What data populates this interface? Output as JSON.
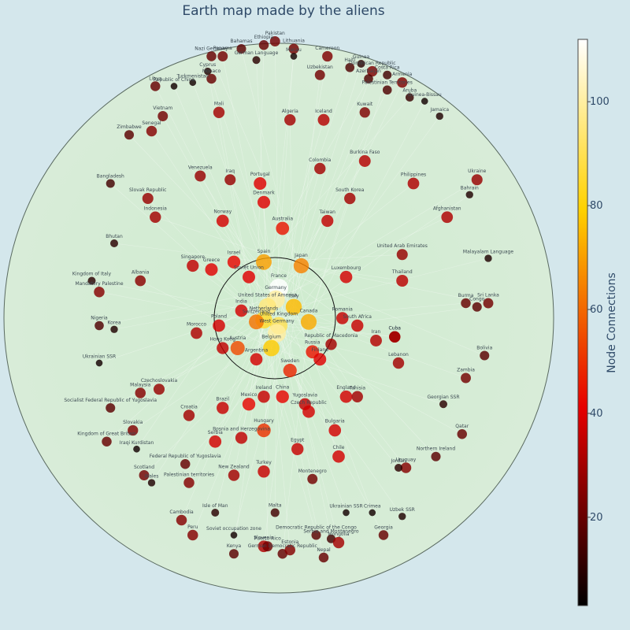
{
  "title": "Earth map made by the aliens",
  "chart_data": {
    "type": "scatter",
    "title": "Earth map made by the aliens",
    "colorbar": {
      "title": "Node Connections",
      "range": [
        3,
        112
      ],
      "ticks": [
        20,
        40,
        60,
        80,
        100
      ],
      "colorscale": [
        "#000000",
        "#e60000",
        "#ffd200",
        "#ffffff"
      ]
    },
    "points": [
      {
        "label": "France",
        "x": 0,
        "y": 8,
        "value": 112
      },
      {
        "label": "Germany",
        "x": -0.8,
        "y": 5,
        "value": 100
      },
      {
        "label": "United States of America",
        "x": -3,
        "y": 3,
        "value": 95
      },
      {
        "label": "United Kingdom",
        "x": 0,
        "y": -2,
        "value": 90
      },
      {
        "label": "Italy",
        "x": 4,
        "y": 3,
        "value": 75
      },
      {
        "label": "Netherlands",
        "x": -4,
        "y": -0.5,
        "value": 85
      },
      {
        "label": "West Germany",
        "x": -0.5,
        "y": -4,
        "value": 100
      },
      {
        "label": "Japan",
        "x": 6,
        "y": 14,
        "value": 65
      },
      {
        "label": "Spain",
        "x": -4,
        "y": 15,
        "value": 70
      },
      {
        "label": "Canada",
        "x": 8,
        "y": -1,
        "value": 72
      },
      {
        "label": "Belgium",
        "x": -2,
        "y": -8,
        "value": 78
      },
      {
        "label": "Switzerland",
        "x": -6,
        "y": -1,
        "value": 62
      },
      {
        "label": "Poland",
        "x": -16,
        "y": -2,
        "value": 38
      },
      {
        "label": "Soviet Union",
        "x": -8,
        "y": 11,
        "value": 40
      },
      {
        "label": "India",
        "x": -10,
        "y": 2,
        "value": 38
      },
      {
        "label": "Austria",
        "x": -11,
        "y": -8,
        "value": 55
      },
      {
        "label": "Russia",
        "x": 9,
        "y": -9,
        "value": 45
      },
      {
        "label": "Argentina",
        "x": -6,
        "y": -11,
        "value": 38
      },
      {
        "label": "Sweden",
        "x": 3,
        "y": -14,
        "value": 48
      },
      {
        "label": "Australia",
        "x": 1,
        "y": 24,
        "value": 45
      },
      {
        "label": "Finland",
        "x": 11,
        "y": -11,
        "value": 40
      },
      {
        "label": "Republic of Macedonia",
        "x": 14,
        "y": -7,
        "value": 30
      },
      {
        "label": "Israel",
        "x": -12,
        "y": 15,
        "value": 42
      },
      {
        "label": "Greece",
        "x": -18,
        "y": 13,
        "value": 40
      },
      {
        "label": "Hong Kong",
        "x": -15,
        "y": -8,
        "value": 35
      },
      {
        "label": "Morocco",
        "x": -22,
        "y": -4,
        "value": 32
      },
      {
        "label": "Denmark",
        "x": -4,
        "y": 31,
        "value": 40
      },
      {
        "label": "Portugal",
        "x": -5,
        "y": 36,
        "value": 40
      },
      {
        "label": "Norway",
        "x": -15,
        "y": 26,
        "value": 38
      },
      {
        "label": "Singapore",
        "x": -23,
        "y": 14,
        "value": 35
      },
      {
        "label": "Taiwan",
        "x": 13,
        "y": 26,
        "value": 35
      },
      {
        "label": "Luxembourg",
        "x": 18,
        "y": 11,
        "value": 38
      },
      {
        "label": "Romania",
        "x": 17,
        "y": 0,
        "value": 36
      },
      {
        "label": "South Africa",
        "x": 21,
        "y": -2,
        "value": 36
      },
      {
        "label": "Ireland",
        "x": -4,
        "y": -21,
        "value": 36
      },
      {
        "label": "China",
        "x": 1,
        "y": -21,
        "value": 42
      },
      {
        "label": "Mexico",
        "x": -8,
        "y": -23,
        "value": 42
      },
      {
        "label": "Yugoslavia",
        "x": 7,
        "y": -23,
        "value": 35
      },
      {
        "label": "Czech Republic",
        "x": 8,
        "y": -25,
        "value": 38
      },
      {
        "label": "Hungary",
        "x": -4,
        "y": -30,
        "value": 50
      },
      {
        "label": "Brazil",
        "x": -15,
        "y": -24,
        "value": 36
      },
      {
        "label": "Bosnia and Herzegovina",
        "x": -10,
        "y": -32,
        "value": 35
      },
      {
        "label": "Serbia",
        "x": -17,
        "y": -33,
        "value": 38
      },
      {
        "label": "Croatia",
        "x": -24,
        "y": -26,
        "value": 30
      },
      {
        "label": "England",
        "x": 18,
        "y": -21,
        "value": 38
      },
      {
        "label": "Tunisia",
        "x": 21,
        "y": -21,
        "value": 30
      },
      {
        "label": "Bulgaria",
        "x": 15,
        "y": -30,
        "value": 38
      },
      {
        "label": "Egypt",
        "x": 5,
        "y": -35,
        "value": 36
      },
      {
        "label": "Chile",
        "x": 16,
        "y": -37,
        "value": 38
      },
      {
        "label": "Turkey",
        "x": -4,
        "y": -41,
        "value": 36
      },
      {
        "label": "New Zealand",
        "x": -12,
        "y": -42,
        "value": 30
      },
      {
        "label": "Montenegro",
        "x": 9,
        "y": -43,
        "value": 22
      },
      {
        "label": "Iran",
        "x": 26,
        "y": -6,
        "value": 33
      },
      {
        "label": "Cuba",
        "x": 31,
        "y": -5,
        "value": 30
      },
      {
        "label": "Lebanon",
        "x": 32,
        "y": -12,
        "value": 30
      },
      {
        "label": "Thailand",
        "x": 33,
        "y": 10,
        "value": 34
      },
      {
        "label": "United Arab Emirates",
        "x": 33,
        "y": 17,
        "value": 28
      },
      {
        "label": "South Korea",
        "x": 19,
        "y": 32,
        "value": 30
      },
      {
        "label": "Colombia",
        "x": 11,
        "y": 40,
        "value": 30
      },
      {
        "label": "Burkina Faso",
        "x": 23,
        "y": 42,
        "value": 33
      },
      {
        "label": "Philippines",
        "x": 36,
        "y": 36,
        "value": 32
      },
      {
        "label": "Afghanistan",
        "x": 45,
        "y": 27,
        "value": 32
      },
      {
        "label": "Ukraine",
        "x": 53,
        "y": 37,
        "value": 28
      },
      {
        "label": "Bahrain",
        "x": 51,
        "y": 33,
        "value": 8
      },
      {
        "label": "Malayalam Language",
        "x": 56,
        "y": 16,
        "value": 8
      },
      {
        "label": "Burma",
        "x": 50,
        "y": 4,
        "value": 20
      },
      {
        "label": "Congo",
        "x": 53,
        "y": 3,
        "value": 18
      },
      {
        "label": "Sri Lanka",
        "x": 56,
        "y": 4,
        "value": 22
      },
      {
        "label": "Bolivia",
        "x": 55,
        "y": -10,
        "value": 18
      },
      {
        "label": "Zambia",
        "x": 50,
        "y": -16,
        "value": 22
      },
      {
        "label": "Georgian SSR",
        "x": 44,
        "y": -23,
        "value": 10
      },
      {
        "label": "Qatar",
        "x": 49,
        "y": -31,
        "value": 20
      },
      {
        "label": "Northern Ireland",
        "x": 42,
        "y": -37,
        "value": 18
      },
      {
        "label": "Uruguay",
        "x": 34,
        "y": -40,
        "value": 25
      },
      {
        "label": "Jordan",
        "x": 32,
        "y": -40,
        "value": 10
      },
      {
        "label": "Cuba",
        "x": 31,
        "y": -5,
        "value": 30
      },
      {
        "label": "Algeria",
        "x": 3,
        "y": 53,
        "value": 30
      },
      {
        "label": "Iceland",
        "x": 12,
        "y": 53,
        "value": 33
      },
      {
        "label": "Kuwait",
        "x": 23,
        "y": 55,
        "value": 24
      },
      {
        "label": "Palestinian Territories",
        "x": 29,
        "y": 61,
        "value": 16
      },
      {
        "label": "Aruba",
        "x": 35,
        "y": 59,
        "value": 12
      },
      {
        "label": "Guinea-Bissau",
        "x": 39,
        "y": 58,
        "value": 6
      },
      {
        "label": "Jamaica",
        "x": 43,
        "y": 54,
        "value": 8
      },
      {
        "label": "Mali",
        "x": -16,
        "y": 55,
        "value": 30
      },
      {
        "label": "Iraq",
        "x": -13,
        "y": 37,
        "value": 28
      },
      {
        "label": "Venezuela",
        "x": -21,
        "y": 38,
        "value": 28
      },
      {
        "label": "Vietnam",
        "x": -31,
        "y": 54,
        "value": 22
      },
      {
        "label": "Senegal",
        "x": -34,
        "y": 50,
        "value": 25
      },
      {
        "label": "Zimbabwe",
        "x": -40,
        "y": 49,
        "value": 18
      },
      {
        "label": "Bangladesh",
        "x": -45,
        "y": 36,
        "value": 14
      },
      {
        "label": "Slovak Republic",
        "x": -35,
        "y": 32,
        "value": 28
      },
      {
        "label": "Indonesia",
        "x": -33,
        "y": 27,
        "value": 30
      },
      {
        "label": "Bhutan",
        "x": -44,
        "y": 20,
        "value": 10
      },
      {
        "label": "Kingdom of Italy",
        "x": -50,
        "y": 10,
        "value": 10
      },
      {
        "label": "Albania",
        "x": -37,
        "y": 10,
        "value": 26
      },
      {
        "label": "Mandatory Palestine",
        "x": -48,
        "y": 7,
        "value": 25
      },
      {
        "label": "Nigeria",
        "x": -48,
        "y": -2,
        "value": 16
      },
      {
        "label": "Korea",
        "x": -44,
        "y": -3,
        "value": 8
      },
      {
        "label": "Ukrainian SSR",
        "x": -48,
        "y": -12,
        "value": 6
      },
      {
        "label": "Malaysia",
        "x": -37,
        "y": -20,
        "value": 25
      },
      {
        "label": "Czechoslovakia",
        "x": -32,
        "y": -19,
        "value": 28
      },
      {
        "label": "Socialist Federal Republic of Yugoslavia",
        "x": -45,
        "y": -24,
        "value": 18
      },
      {
        "label": "Slovakia",
        "x": -39,
        "y": -30,
        "value": 24
      },
      {
        "label": "Kingdom of Great Britain",
        "x": -46,
        "y": -33,
        "value": 20
      },
      {
        "label": "Iraqi Kurdistan",
        "x": -38,
        "y": -35,
        "value": 6
      },
      {
        "label": "Federal Republic of Yugoslavia",
        "x": -25,
        "y": -39,
        "value": 20
      },
      {
        "label": "Scotland",
        "x": -36,
        "y": -42,
        "value": 22
      },
      {
        "label": "Wales",
        "x": -34,
        "y": -44,
        "value": 8
      },
      {
        "label": "Palestinian territories",
        "x": -24,
        "y": -44,
        "value": 25
      },
      {
        "label": "Cambodia",
        "x": -26,
        "y": -54,
        "value": 25
      },
      {
        "label": "Isle of Man",
        "x": -17,
        "y": -52,
        "value": 10
      },
      {
        "label": "Peru",
        "x": -23,
        "y": -58,
        "value": 25
      },
      {
        "label": "Soviet occupation zone",
        "x": -12,
        "y": -58,
        "value": 6
      },
      {
        "label": "Kenya",
        "x": -12,
        "y": -63,
        "value": 18
      },
      {
        "label": "Malta",
        "x": -1,
        "y": -52,
        "value": 14
      },
      {
        "label": "Slovenia",
        "x": -4,
        "y": -61,
        "value": 32
      },
      {
        "label": "Puerto Rico",
        "x": -3,
        "y": -61,
        "value": 22
      },
      {
        "label": "German Democratic Republic",
        "x": 1,
        "y": -63,
        "value": 20
      },
      {
        "label": "Estonia",
        "x": 3,
        "y": -62,
        "value": 25
      },
      {
        "label": "Democratic Republic of the Congo",
        "x": 10,
        "y": -58,
        "value": 18
      },
      {
        "label": "Serbia and Montenegro",
        "x": 14,
        "y": -59,
        "value": 14
      },
      {
        "label": "Mongolia",
        "x": 16,
        "y": -60,
        "value": 30
      },
      {
        "label": "Nepal",
        "x": 12,
        "y": -64,
        "value": 20
      },
      {
        "label": "Ukrainian SSR",
        "x": 18,
        "y": -52,
        "value": 6
      },
      {
        "label": "Crimea",
        "x": 25,
        "y": -52,
        "value": 6
      },
      {
        "label": "Uzbek SSR",
        "x": 33,
        "y": -53,
        "value": 8
      },
      {
        "label": "Georgia",
        "x": 28,
        "y": -58,
        "value": 20
      },
      {
        "label": "Nazi Germany",
        "x": -18,
        "y": 70,
        "value": 20
      },
      {
        "label": "Panama",
        "x": -15,
        "y": 70,
        "value": 22
      },
      {
        "label": "Bahamas",
        "x": -10,
        "y": 72,
        "value": 18
      },
      {
        "label": "German Language",
        "x": -6,
        "y": 69,
        "value": 10
      },
      {
        "label": "Ethiopia",
        "x": -4,
        "y": 73,
        "value": 20
      },
      {
        "label": "Pakistan",
        "x": -1,
        "y": 74,
        "value": 22
      },
      {
        "label": "Lithuania",
        "x": 4,
        "y": 72,
        "value": 22
      },
      {
        "label": "Macau",
        "x": 4,
        "y": 70,
        "value": 6
      },
      {
        "label": "Cameroon",
        "x": 13,
        "y": 70,
        "value": 24
      },
      {
        "label": "Uzbekistan",
        "x": 11,
        "y": 65,
        "value": 22
      },
      {
        "label": "Haiti",
        "x": 19,
        "y": 67,
        "value": 16
      },
      {
        "label": "Guinea",
        "x": 22,
        "y": 68,
        "value": 10
      },
      {
        "label": "Dominican Republic",
        "x": 25,
        "y": 66,
        "value": 24
      },
      {
        "label": "Azerbaijan",
        "x": 24,
        "y": 64,
        "value": 16
      },
      {
        "label": "Costa Rica",
        "x": 29,
        "y": 65,
        "value": 14
      },
      {
        "label": "Armenia",
        "x": 33,
        "y": 63,
        "value": 24
      },
      {
        "label": "Cyprus",
        "x": -19,
        "y": 66,
        "value": 8
      },
      {
        "label": "Monaco",
        "x": -18,
        "y": 64,
        "value": 20
      },
      {
        "label": "Turkmenistan",
        "x": -23,
        "y": 63,
        "value": 6
      },
      {
        "label": "Republic of China",
        "x": -28,
        "y": 62,
        "value": 6
      },
      {
        "label": "Libya",
        "x": -33,
        "y": 62,
        "value": 20
      }
    ]
  }
}
